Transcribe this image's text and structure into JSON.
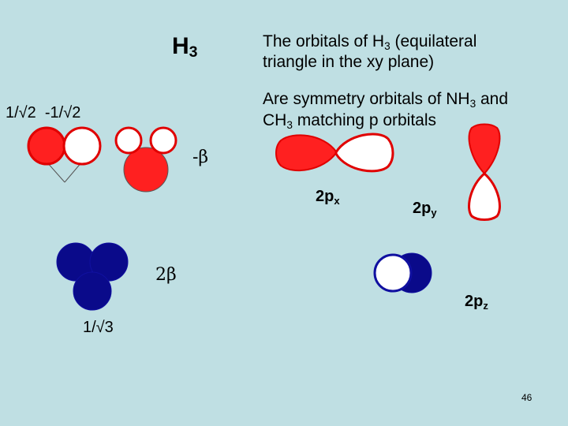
{
  "title": {
    "main": "H",
    "sub": "3"
  },
  "description": {
    "line1_pre": "The orbitals of H",
    "line1_sub": "3",
    "line1_post": " (equilateral",
    "line2": "triangle in the xy plane)",
    "line3_pre": "Are symmetry orbitals of NH",
    "line3_sub": "3",
    "line3_post": " and",
    "line4_pre": "CH",
    "line4_sub": "3",
    "line4_post": " matching p orbitals"
  },
  "coefficients": {
    "half": "1/√2  -1/√2",
    "third": "1/√3"
  },
  "energies": {
    "minus_beta": "-β",
    "two_beta": "2β"
  },
  "orbital_labels": {
    "px": {
      "base": "2p",
      "sub": "x"
    },
    "py": {
      "base": "2p",
      "sub": "y"
    },
    "pz": {
      "base": "2p",
      "sub": "z"
    }
  },
  "page_number": "46",
  "colors": {
    "background": "#bfdfe3",
    "positive_phase": "#ff2020",
    "negative_phase": "#ffffff",
    "pz_fill": "#0a0a8a",
    "outline_red": "#e00000",
    "outline_blue": "#1010a0",
    "node_line": "#555555"
  }
}
